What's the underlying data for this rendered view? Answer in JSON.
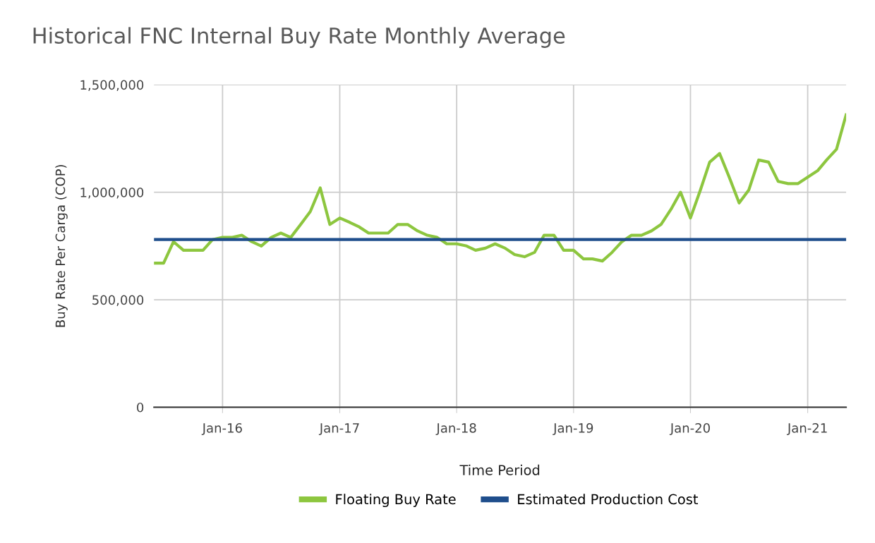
{
  "chart_data": {
    "type": "line",
    "title": "Historical FNC Internal Buy Rate Monthly Average",
    "xlabel": "Time Period",
    "ylabel": "Buy Rate Per Carga (COP)",
    "x": [
      "2015-06",
      "2015-07",
      "2015-08",
      "2015-09",
      "2015-10",
      "2015-11",
      "2015-12",
      "2016-01",
      "2016-02",
      "2016-03",
      "2016-04",
      "2016-05",
      "2016-06",
      "2016-07",
      "2016-08",
      "2016-09",
      "2016-10",
      "2016-11",
      "2016-12",
      "2017-01",
      "2017-02",
      "2017-03",
      "2017-04",
      "2017-05",
      "2017-06",
      "2017-07",
      "2017-08",
      "2017-09",
      "2017-10",
      "2017-11",
      "2017-12",
      "2018-01",
      "2018-02",
      "2018-03",
      "2018-04",
      "2018-05",
      "2018-06",
      "2018-07",
      "2018-08",
      "2018-09",
      "2018-10",
      "2018-11",
      "2018-12",
      "2019-01",
      "2019-02",
      "2019-03",
      "2019-04",
      "2019-05",
      "2019-06",
      "2019-07",
      "2019-08",
      "2019-09",
      "2019-10",
      "2019-11",
      "2019-12",
      "2020-01",
      "2020-02",
      "2020-03",
      "2020-04",
      "2020-05",
      "2020-06",
      "2020-07",
      "2020-08",
      "2020-09",
      "2020-10",
      "2020-11",
      "2020-12",
      "2021-01",
      "2021-02",
      "2021-03",
      "2021-04",
      "2021-05"
    ],
    "series": [
      {
        "name": "Floating Buy Rate",
        "color": "#8dc63f",
        "values": [
          670000,
          670000,
          770000,
          730000,
          730000,
          730000,
          780000,
          790000,
          790000,
          800000,
          770000,
          750000,
          790000,
          810000,
          790000,
          850000,
          910000,
          1020000,
          850000,
          880000,
          860000,
          840000,
          810000,
          810000,
          810000,
          850000,
          850000,
          820000,
          800000,
          790000,
          760000,
          760000,
          750000,
          730000,
          740000,
          760000,
          740000,
          710000,
          700000,
          720000,
          800000,
          800000,
          730000,
          730000,
          690000,
          690000,
          680000,
          720000,
          770000,
          800000,
          800000,
          820000,
          850000,
          920000,
          1000000,
          880000,
          1010000,
          1140000,
          1180000,
          1070000,
          950000,
          1010000,
          1150000,
          1140000,
          1050000,
          1040000,
          1040000,
          1070000,
          1100000,
          1150000,
          1200000,
          1360000
        ]
      },
      {
        "name": "Estimated Production Cost",
        "color": "#1f4e8c",
        "x": [
          "2015-06",
          "2021-05"
        ],
        "values": [
          780000,
          780000
        ]
      }
    ],
    "xlim": [
      "2015-06",
      "2021-05"
    ],
    "xticks": [
      {
        "value": "2016-01",
        "label": "Jan-16"
      },
      {
        "value": "2017-01",
        "label": "Jan-17"
      },
      {
        "value": "2018-01",
        "label": "Jan-18"
      },
      {
        "value": "2019-01",
        "label": "Jan-19"
      },
      {
        "value": "2020-01",
        "label": "Jan-20"
      },
      {
        "value": "2021-01",
        "label": "Jan-21"
      }
    ],
    "ylim": [
      0,
      1500000
    ],
    "yticks": [
      {
        "value": 0,
        "label": "0"
      },
      {
        "value": 500000,
        "label": "500,000"
      },
      {
        "value": 1000000,
        "label": "1,000,000"
      },
      {
        "value": 1500000,
        "label": "1,500,000"
      }
    ],
    "grid": true,
    "legend": "bottom",
    "marker": "none",
    "line_style": "solid"
  }
}
